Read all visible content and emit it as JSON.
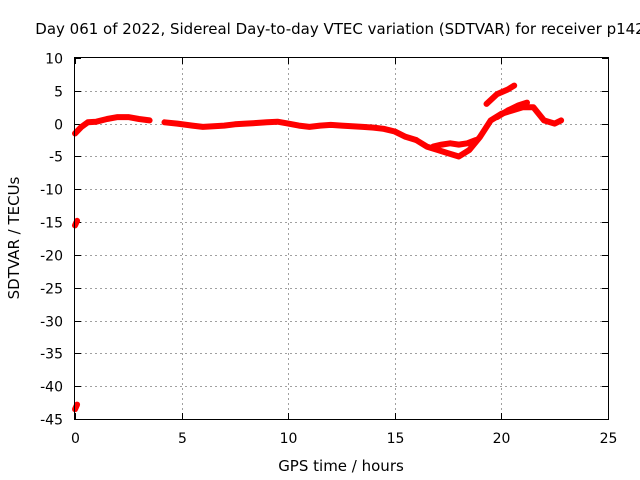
{
  "chart_data": {
    "type": "line",
    "title": "Day 061 of 2022, Sidereal Day-to-day VTEC variation (SDTVAR) for receiver p142",
    "xlabel": "GPS time / hours",
    "ylabel": "SDTVAR / TECUs",
    "xlim": [
      0,
      25
    ],
    "ylim": [
      -45,
      10
    ],
    "xticks": [
      0,
      5,
      10,
      15,
      20,
      25
    ],
    "yticks": [
      10,
      5,
      0,
      -5,
      -10,
      -15,
      -20,
      -25,
      -30,
      -35,
      -40,
      -45
    ],
    "grid": true,
    "series_color": "#ff0000",
    "series": [
      {
        "name": "main",
        "x": [
          0.0,
          0.3,
          0.6,
          1.0,
          1.5,
          2.0,
          2.5,
          3.0,
          3.5
        ],
        "y": [
          -1.5,
          -0.5,
          0.2,
          0.3,
          0.7,
          1.0,
          1.0,
          0.7,
          0.5
        ]
      },
      {
        "name": "main",
        "x": [
          4.2,
          4.8,
          5.5,
          6.0,
          6.5,
          7.0,
          7.5,
          8.0,
          8.5,
          9.0,
          9.5,
          10.0,
          10.5,
          11.0,
          11.5,
          12.0,
          12.5,
          13.0,
          13.5,
          14.0,
          14.5,
          15.0,
          15.5,
          16.0
        ],
        "y": [
          0.2,
          0.0,
          -0.3,
          -0.5,
          -0.4,
          -0.3,
          -0.1,
          0.0,
          0.1,
          0.2,
          0.3,
          0.0,
          -0.3,
          -0.5,
          -0.3,
          -0.2,
          -0.3,
          -0.4,
          -0.5,
          -0.6,
          -0.8,
          -1.2,
          -2.0,
          -2.5
        ]
      },
      {
        "name": "main",
        "x": [
          16.0,
          16.5,
          17.0,
          17.5,
          18.0,
          18.5,
          19.0,
          19.5,
          20.0,
          20.5,
          21.0,
          21.5,
          22.0,
          22.5,
          22.8
        ],
        "y": [
          -2.5,
          -3.5,
          -4.0,
          -4.5,
          -5.0,
          -4.0,
          -2.0,
          0.5,
          1.5,
          2.0,
          2.5,
          2.5,
          0.5,
          0.0,
          0.5
        ]
      },
      {
        "name": "main",
        "x": [
          16.8,
          17.2,
          17.6,
          18.0,
          18.4,
          18.8
        ],
        "y": [
          -3.5,
          -3.2,
          -3.0,
          -3.2,
          -3.0,
          -2.5
        ]
      },
      {
        "name": "main",
        "x": [
          19.3,
          19.8,
          20.3,
          20.6
        ],
        "y": [
          3.0,
          4.5,
          5.2,
          5.8
        ]
      },
      {
        "name": "main",
        "x": [
          19.8,
          20.3,
          20.8,
          21.2
        ],
        "y": [
          1.0,
          2.0,
          2.8,
          3.2
        ]
      },
      {
        "name": "main",
        "x": [
          0.0,
          0.1
        ],
        "y": [
          -15.5,
          -14.8
        ]
      },
      {
        "name": "main",
        "x": [
          0.0,
          0.1
        ],
        "y": [
          -43.5,
          -42.8
        ]
      }
    ]
  }
}
